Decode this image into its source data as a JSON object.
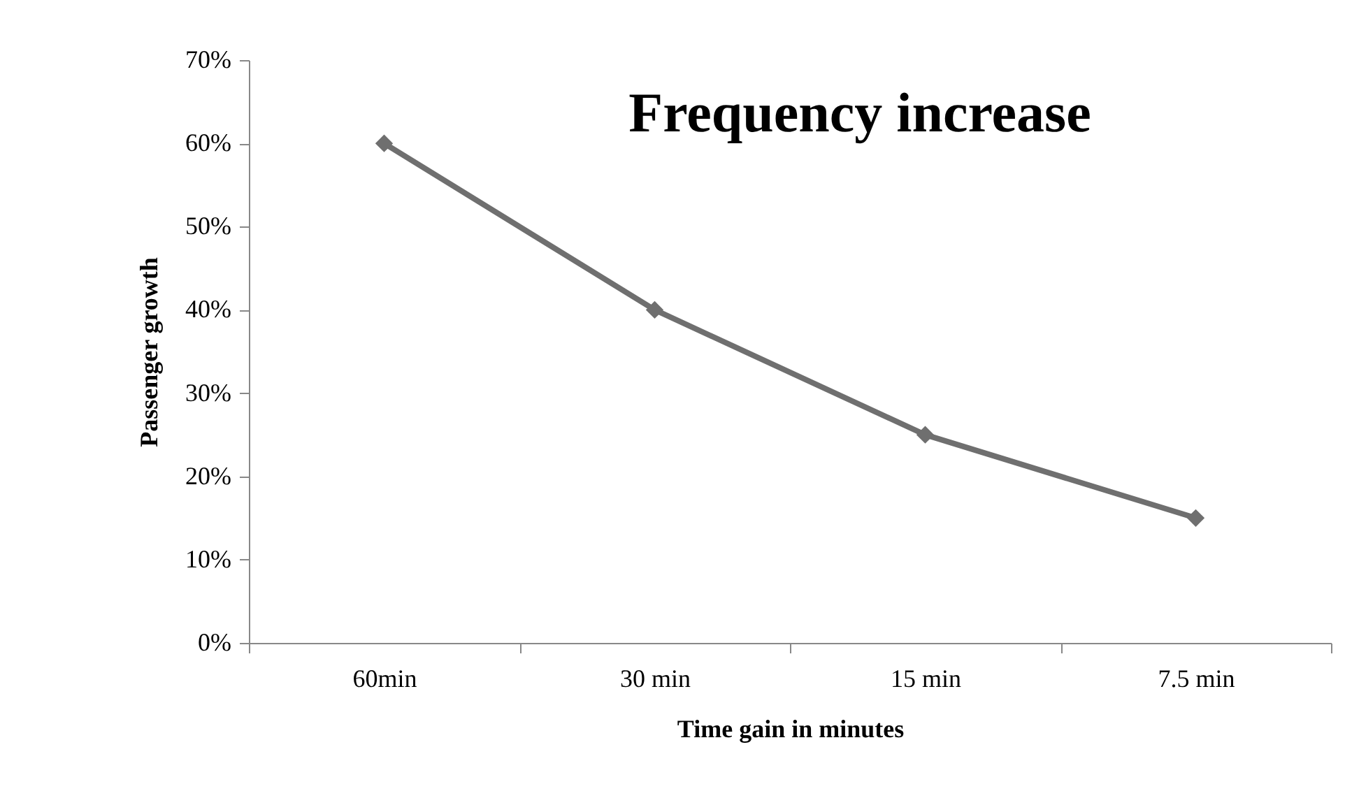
{
  "chart_data": {
    "type": "line",
    "title": "Frequency increase",
    "xlabel": "Time gain in minutes",
    "ylabel": "Passenger growth",
    "categories": [
      "60min",
      "30 min",
      "15 min",
      "7.5 min"
    ],
    "series": [
      {
        "color": "#6f6f6f",
        "values": [
          60,
          40,
          25,
          15
        ]
      }
    ],
    "ylim": [
      0,
      70
    ],
    "yticks": [
      {
        "value": 0,
        "label": "0%"
      },
      {
        "value": 10,
        "label": "10%"
      },
      {
        "value": 20,
        "label": "20%"
      },
      {
        "value": 30,
        "label": "30%"
      },
      {
        "value": 40,
        "label": "40%"
      },
      {
        "value": 50,
        "label": "50%"
      },
      {
        "value": 60,
        "label": "60%"
      },
      {
        "value": 70,
        "label": "70%"
      }
    ],
    "grid": false,
    "marker": "diamond",
    "line_style": "solid"
  }
}
